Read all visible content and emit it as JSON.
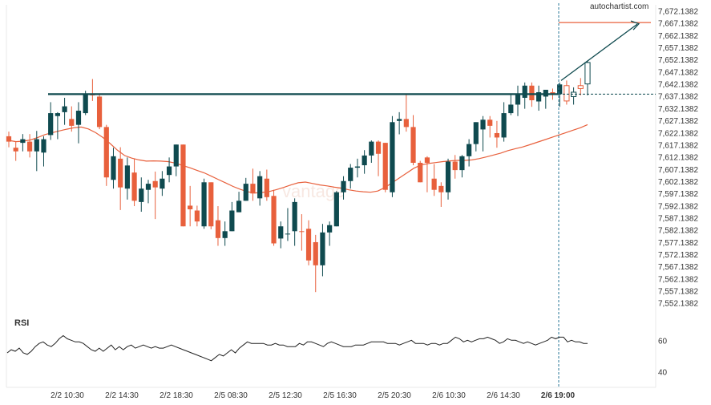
{
  "brand": "autochartist.com",
  "watermark": "vantage",
  "colors": {
    "bull": "#0f4a4f",
    "bear": "#e8603c",
    "ma": "#e8603c",
    "resistance": "#0f4a4f",
    "target": "#e8603c",
    "grid": "#e8e8e8",
    "rsi": "#222222"
  },
  "chart_data": {
    "type": "candlestick",
    "y_ticks": [
      "7,672.1382",
      "7,667.1382",
      "7,662.1382",
      "7,657.1382",
      "7,652.1382",
      "7,647.1382",
      "7,642.1382",
      "7,637.1382",
      "7,632.1382",
      "7,627.1382",
      "7,622.1382",
      "7,617.1382",
      "7,612.1382",
      "7,607.1382",
      "7,602.1382",
      "7,597.1382",
      "7,592.1382",
      "7,587.1382",
      "7,582.1382",
      "7,577.1382",
      "7,572.1382",
      "7,567.1382",
      "7,562.1382",
      "7,557.1382",
      "7,552.1382"
    ],
    "ylim": [
      7548.1,
      7674.6
    ],
    "x_ticks": [
      "2/2 10:30",
      "2/2 14:30",
      "2/2 18:30",
      "2/5 08:30",
      "2/5 12:30",
      "2/5 16:30",
      "2/5 20:30",
      "2/6 10:30",
      "2/6 14:30",
      "2/6 19:00"
    ],
    "current_time_label": "2/6 19:00",
    "resistance_level": 7637.9,
    "target_level": 7667.3,
    "candles": [
      {
        "o": 7620.6,
        "h": 7622.5,
        "l": 7616.1,
        "c": 7618.4
      },
      {
        "o": 7615.9,
        "h": 7618.4,
        "l": 7610.5,
        "c": 7614.4
      },
      {
        "o": 7617.9,
        "h": 7621.5,
        "l": 7614.4,
        "c": 7619.4
      },
      {
        "o": 7618.4,
        "h": 7621.5,
        "l": 7611.9,
        "c": 7614.4
      },
      {
        "o": 7614.4,
        "h": 7622.8,
        "l": 7606.3,
        "c": 7619.4
      },
      {
        "o": 7613.9,
        "h": 7620.6,
        "l": 7608.2,
        "c": 7619.4
      },
      {
        "o": 7621.1,
        "h": 7634.6,
        "l": 7619.1,
        "c": 7630.1
      },
      {
        "o": 7628.9,
        "h": 7630.5,
        "l": 7619.4,
        "c": 7630.1
      },
      {
        "o": 7630.5,
        "h": 7636.4,
        "l": 7625.3,
        "c": 7632.9
      },
      {
        "o": 7627.7,
        "h": 7632.9,
        "l": 7622.5,
        "c": 7624.9
      },
      {
        "o": 7625.3,
        "h": 7634.6,
        "l": 7617.7,
        "c": 7631.1
      },
      {
        "o": 7630.1,
        "h": 7639.3,
        "l": 7629.3,
        "c": 7637.9
      },
      {
        "o": 7638.2,
        "h": 7644.1,
        "l": 7635.1,
        "c": 7637.4
      },
      {
        "o": 7636.9,
        "h": 7637.9,
        "l": 7623.5,
        "c": 7624.4
      },
      {
        "o": 7624.4,
        "h": 7625.3,
        "l": 7600.2,
        "c": 7603.7
      },
      {
        "o": 7602.7,
        "h": 7615.9,
        "l": 7599.1,
        "c": 7612.4
      },
      {
        "o": 7611.4,
        "h": 7616.1,
        "l": 7590.3,
        "c": 7599.6
      },
      {
        "o": 7599.1,
        "h": 7611.9,
        "l": 7594.6,
        "c": 7608.6
      },
      {
        "o": 7605.7,
        "h": 7611.4,
        "l": 7591.9,
        "c": 7594.1
      },
      {
        "o": 7593.6,
        "h": 7603.7,
        "l": 7589.6,
        "c": 7599.1
      },
      {
        "o": 7598.6,
        "h": 7602.7,
        "l": 7593.1,
        "c": 7601.1
      },
      {
        "o": 7602.2,
        "h": 7606.1,
        "l": 7586.6,
        "c": 7599.6
      },
      {
        "o": 7599.1,
        "h": 7606.3,
        "l": 7596.1,
        "c": 7603.2
      },
      {
        "o": 7604.7,
        "h": 7611.9,
        "l": 7601.7,
        "c": 7608.2
      },
      {
        "o": 7608.2,
        "h": 7617.2,
        "l": 7604.2,
        "c": 7617.2
      },
      {
        "o": 7617.2,
        "h": 7617.2,
        "l": 7583.6,
        "c": 7583.6
      },
      {
        "o": 7592.1,
        "h": 7600.2,
        "l": 7583.6,
        "c": 7590.6
      },
      {
        "o": 7590.1,
        "h": 7592.1,
        "l": 7583.6,
        "c": 7585.6
      },
      {
        "o": 7583.6,
        "h": 7603.2,
        "l": 7582.6,
        "c": 7601.7
      },
      {
        "o": 7601.7,
        "h": 7601.7,
        "l": 7582.4,
        "c": 7583.6
      },
      {
        "o": 7586.1,
        "h": 7591.9,
        "l": 7575.6,
        "c": 7578.8
      },
      {
        "o": 7578.8,
        "h": 7585.6,
        "l": 7575.6,
        "c": 7581.6
      },
      {
        "o": 7581.6,
        "h": 7593.6,
        "l": 7581.6,
        "c": 7590.1
      },
      {
        "o": 7589.4,
        "h": 7597.8,
        "l": 7589.4,
        "c": 7594.1
      },
      {
        "o": 7594.1,
        "h": 7603.5,
        "l": 7594.1,
        "c": 7601.1
      },
      {
        "o": 7601.1,
        "h": 7607.3,
        "l": 7594.1,
        "c": 7597.1
      },
      {
        "o": 7595.1,
        "h": 7606.3,
        "l": 7592.1,
        "c": 7604.2
      },
      {
        "o": 7603.2,
        "h": 7606.9,
        "l": 7594.1,
        "c": 7595.6
      },
      {
        "o": 7596.1,
        "h": 7598.6,
        "l": 7575.6,
        "c": 7576.6
      },
      {
        "o": 7578.6,
        "h": 7585.6,
        "l": 7574.6,
        "c": 7583.6
      },
      {
        "o": 7580.6,
        "h": 7591.1,
        "l": 7577.6,
        "c": 7580.6
      },
      {
        "o": 7581.6,
        "h": 7595.1,
        "l": 7575.6,
        "c": 7593.6
      },
      {
        "o": 7581.6,
        "h": 7588.6,
        "l": 7573.6,
        "c": 7581.4
      },
      {
        "o": 7582.6,
        "h": 7586.1,
        "l": 7567.6,
        "c": 7569.6
      },
      {
        "o": 7577.1,
        "h": 7580.1,
        "l": 7556.6,
        "c": 7567.6
      },
      {
        "o": 7567.6,
        "h": 7584.6,
        "l": 7563.1,
        "c": 7581.1
      },
      {
        "o": 7581.1,
        "h": 7585.6,
        "l": 7575.6,
        "c": 7584.1
      },
      {
        "o": 7583.6,
        "h": 7598.1,
        "l": 7583.6,
        "c": 7597.6
      },
      {
        "o": 7597.6,
        "h": 7604.2,
        "l": 7594.6,
        "c": 7602.2
      },
      {
        "o": 7602.2,
        "h": 7609.2,
        "l": 7599.1,
        "c": 7607.7
      },
      {
        "o": 7607.7,
        "h": 7611.4,
        "l": 7603.7,
        "c": 7608.2
      },
      {
        "o": 7608.7,
        "h": 7614.9,
        "l": 7605.2,
        "c": 7612.7
      },
      {
        "o": 7612.7,
        "h": 7618.9,
        "l": 7609.7,
        "c": 7618.4
      },
      {
        "o": 7618.4,
        "h": 7618.9,
        "l": 7604.2,
        "c": 7613.4
      },
      {
        "o": 7617.9,
        "h": 7617.9,
        "l": 7597.6,
        "c": 7598.6
      },
      {
        "o": 7597.6,
        "h": 7628.9,
        "l": 7595.6,
        "c": 7626.4
      },
      {
        "o": 7626.9,
        "h": 7630.5,
        "l": 7621.4,
        "c": 7627.7
      },
      {
        "o": 7627.7,
        "h": 7637.9,
        "l": 7622.5,
        "c": 7624.4
      },
      {
        "o": 7624.4,
        "h": 7629.3,
        "l": 7608.7,
        "c": 7609.7
      },
      {
        "o": 7609.7,
        "h": 7610.5,
        "l": 7601.7,
        "c": 7601.7
      },
      {
        "o": 7611.9,
        "h": 7612.4,
        "l": 7597.6,
        "c": 7609.7
      },
      {
        "o": 7603.2,
        "h": 7609.2,
        "l": 7596.1,
        "c": 7598.6
      },
      {
        "o": 7600.2,
        "h": 7601.7,
        "l": 7591.6,
        "c": 7597.6
      },
      {
        "o": 7597.6,
        "h": 7611.4,
        "l": 7594.6,
        "c": 7610.2
      },
      {
        "o": 7610.2,
        "h": 7612.9,
        "l": 7603.2,
        "c": 7606.7
      },
      {
        "o": 7606.7,
        "h": 7612.9,
        "l": 7603.7,
        "c": 7612.4
      },
      {
        "o": 7612.4,
        "h": 7619.4,
        "l": 7608.2,
        "c": 7617.4
      },
      {
        "o": 7617.4,
        "h": 7626.4,
        "l": 7614.4,
        "c": 7626.4
      },
      {
        "o": 7623.4,
        "h": 7628.9,
        "l": 7614.4,
        "c": 7627.4
      },
      {
        "o": 7627.4,
        "h": 7628.9,
        "l": 7620.1,
        "c": 7624.9
      },
      {
        "o": 7621.9,
        "h": 7626.9,
        "l": 7615.9,
        "c": 7620.1
      },
      {
        "o": 7620.1,
        "h": 7634.6,
        "l": 7618.4,
        "c": 7630.1
      },
      {
        "o": 7630.1,
        "h": 7637.9,
        "l": 7629.3,
        "c": 7633.6
      },
      {
        "o": 7633.6,
        "h": 7641.4,
        "l": 7628.9,
        "c": 7638.2
      },
      {
        "o": 7636.4,
        "h": 7642.7,
        "l": 7631.9,
        "c": 7641.4
      },
      {
        "o": 7641.4,
        "h": 7642.7,
        "l": 7632.7,
        "c": 7635.4
      },
      {
        "o": 7634.9,
        "h": 7641.4,
        "l": 7631.1,
        "c": 7638.7
      },
      {
        "o": 7636.9,
        "h": 7639.3,
        "l": 7631.9,
        "c": 7639.7
      },
      {
        "o": 7638.7,
        "h": 7640.2,
        "l": 7635.6,
        "c": 7637.9
      },
      {
        "o": 7637.9,
        "h": 7642.7,
        "l": 7632.7,
        "c": 7641.9
      },
      {
        "o": 7641.4,
        "h": 7643.5,
        "l": 7633.6,
        "c": 7635.1
      },
      {
        "o": 7636.9,
        "h": 7640.7,
        "l": 7633.6,
        "c": 7638.7
      },
      {
        "o": 7641.4,
        "h": 7644.5,
        "l": 7637.4,
        "c": 7640.2
      },
      {
        "o": 7642.1,
        "h": 7651.7,
        "l": 7637.4,
        "c": 7650.9
      }
    ],
    "ma": [
      7618.9,
      7618.4,
      7618.6,
      7619.1,
      7620.1,
      7621.3,
      7622.1,
      7622.8,
      7623.5,
      7624.1,
      7624.4,
      7623.6,
      7622.1,
      7620.1,
      7617.6,
      7614.9,
      7612.7,
      7611.6,
      7610.9,
      7610.4,
      7610.5,
      7610.4,
      7610.2,
      7609.6,
      7608.6,
      7607.7,
      7606.6,
      7605.6,
      7604.2,
      7602.8,
      7601.4,
      7600.0,
      7598.8,
      7597.8,
      7597.3,
      7597.5,
      7597.9,
      7598.7,
      7599.6,
      7600.6,
      7601.5,
      7601.8,
      7601.2,
      7600.6,
      7600.2,
      7599.7,
      7599.3,
      7598.6,
      7598.1,
      7597.8,
      7597.6,
      7598.1,
      7599.6,
      7601.5,
      7603.5,
      7605.5,
      7607.5,
      7608.8,
      7609.4,
      7609.8,
      7610.2,
      7610.5,
      7610.7,
      7610.7,
      7610.9,
      7611.4,
      7612.1,
      7612.9,
      7613.7,
      7614.7,
      7615.5,
      7616.2,
      7617.1,
      7618.1,
      7619.1,
      7620.1,
      7621.1,
      7622.1,
      7623.1,
      7624.1,
      7625.4
    ],
    "rsi": {
      "label": "RSI",
      "ticks": [
        "60",
        "40"
      ],
      "ylim": [
        30,
        75
      ],
      "values": [
        52,
        54,
        53,
        55,
        52,
        51,
        53,
        56,
        58,
        59,
        57,
        56,
        58,
        61,
        63,
        61,
        60,
        59,
        59,
        58,
        56,
        54,
        53,
        55,
        53,
        55,
        57,
        54,
        56,
        54,
        56,
        57,
        55,
        56,
        57,
        56,
        55,
        56,
        55,
        55,
        56,
        57,
        56,
        55,
        54,
        53,
        52,
        51,
        50,
        49,
        48,
        47,
        49,
        51,
        50,
        52,
        54,
        52,
        55,
        57,
        59,
        58,
        58,
        58,
        58,
        57,
        57,
        58,
        57,
        57,
        56,
        56,
        56,
        58,
        57,
        59,
        59,
        58,
        57,
        56,
        58,
        59,
        58,
        57,
        56,
        56,
        56,
        57,
        57,
        57,
        58,
        59,
        59,
        59,
        59,
        58,
        58,
        58,
        57,
        58,
        59,
        60,
        58,
        58,
        58,
        57,
        58,
        58,
        57,
        58,
        58,
        60,
        62,
        61,
        59,
        60,
        59,
        60,
        61,
        61,
        62,
        61,
        60,
        58,
        59,
        61,
        60,
        60,
        59,
        58,
        59,
        58,
        57,
        58,
        59,
        60,
        62,
        61,
        62,
        62,
        59,
        60,
        59,
        59,
        58,
        58
      ]
    }
  }
}
